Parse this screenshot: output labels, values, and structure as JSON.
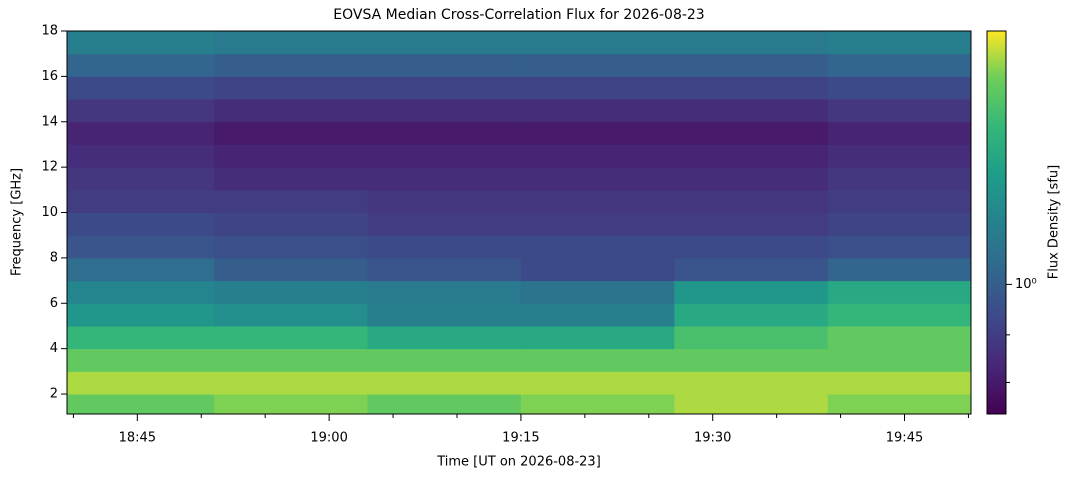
{
  "chart_data": {
    "type": "heatmap",
    "title": "EOVSA Median Cross-Correlation Flux for 2026-08-23",
    "xlabel": "Time [UT on 2026-08-23]",
    "ylabel": "Frequency [GHz]",
    "colorbar_label": "Flux Density [sfu]",
    "colormap": "viridis",
    "color_scale": "log",
    "clim": [
      0.4,
      6
    ],
    "cticks": [
      {
        "value": 1,
        "label": "10⁰"
      }
    ],
    "cticks_minor": [
      0.5,
      0.7
    ],
    "x_edges": [
      1119.5,
      1131,
      1143,
      1155,
      1167,
      1179,
      1190.2
    ],
    "y_edges": [
      1.12,
      2,
      3,
      4,
      5,
      6,
      7,
      8,
      9,
      10,
      11,
      12,
      13,
      14,
      15,
      16,
      17,
      18
    ],
    "values": [
      [
        4,
        4.5,
        4,
        4.5,
        5,
        4.5
      ],
      [
        5,
        5,
        5,
        5,
        5,
        5
      ],
      [
        4,
        4,
        4,
        4,
        4,
        4
      ],
      [
        3,
        3,
        2.5,
        2.5,
        3.5,
        4
      ],
      [
        2,
        1.8,
        1.5,
        1.5,
        2.5,
        3
      ],
      [
        1.6,
        1.5,
        1.4,
        1.3,
        2,
        2.5
      ],
      [
        1.2,
        1.0,
        0.9,
        0.8,
        0.9,
        1.1
      ],
      [
        0.9,
        0.85,
        0.8,
        0.8,
        0.8,
        0.85
      ],
      [
        0.8,
        0.75,
        0.7,
        0.7,
        0.7,
        0.75
      ],
      [
        0.7,
        0.7,
        0.65,
        0.65,
        0.65,
        0.7
      ],
      [
        0.65,
        0.6,
        0.6,
        0.6,
        0.6,
        0.65
      ],
      [
        0.6,
        0.55,
        0.55,
        0.55,
        0.55,
        0.6
      ],
      [
        0.55,
        0.5,
        0.5,
        0.5,
        0.5,
        0.55
      ],
      [
        0.65,
        0.6,
        0.6,
        0.6,
        0.6,
        0.65
      ],
      [
        0.8,
        0.75,
        0.75,
        0.75,
        0.75,
        0.8
      ],
      [
        1.1,
        1,
        1,
        1,
        1,
        1.1
      ],
      [
        1.5,
        1.4,
        1.4,
        1.4,
        1.4,
        1.5
      ]
    ],
    "xlim": [
      1119.5,
      1190.2
    ],
    "ylim": [
      1.12,
      18
    ],
    "xticks": [
      {
        "value": 1125,
        "label": "18:45"
      },
      {
        "value": 1140,
        "label": "19:00"
      },
      {
        "value": 1155,
        "label": "19:15"
      },
      {
        "value": 1170,
        "label": "19:30"
      },
      {
        "value": 1185,
        "label": "19:45"
      }
    ],
    "xticks_minor": [
      1120,
      1130,
      1135,
      1145,
      1150,
      1160,
      1165,
      1175,
      1180,
      1190
    ],
    "yticks": [
      2,
      4,
      6,
      8,
      10,
      12,
      14,
      16,
      18
    ]
  }
}
